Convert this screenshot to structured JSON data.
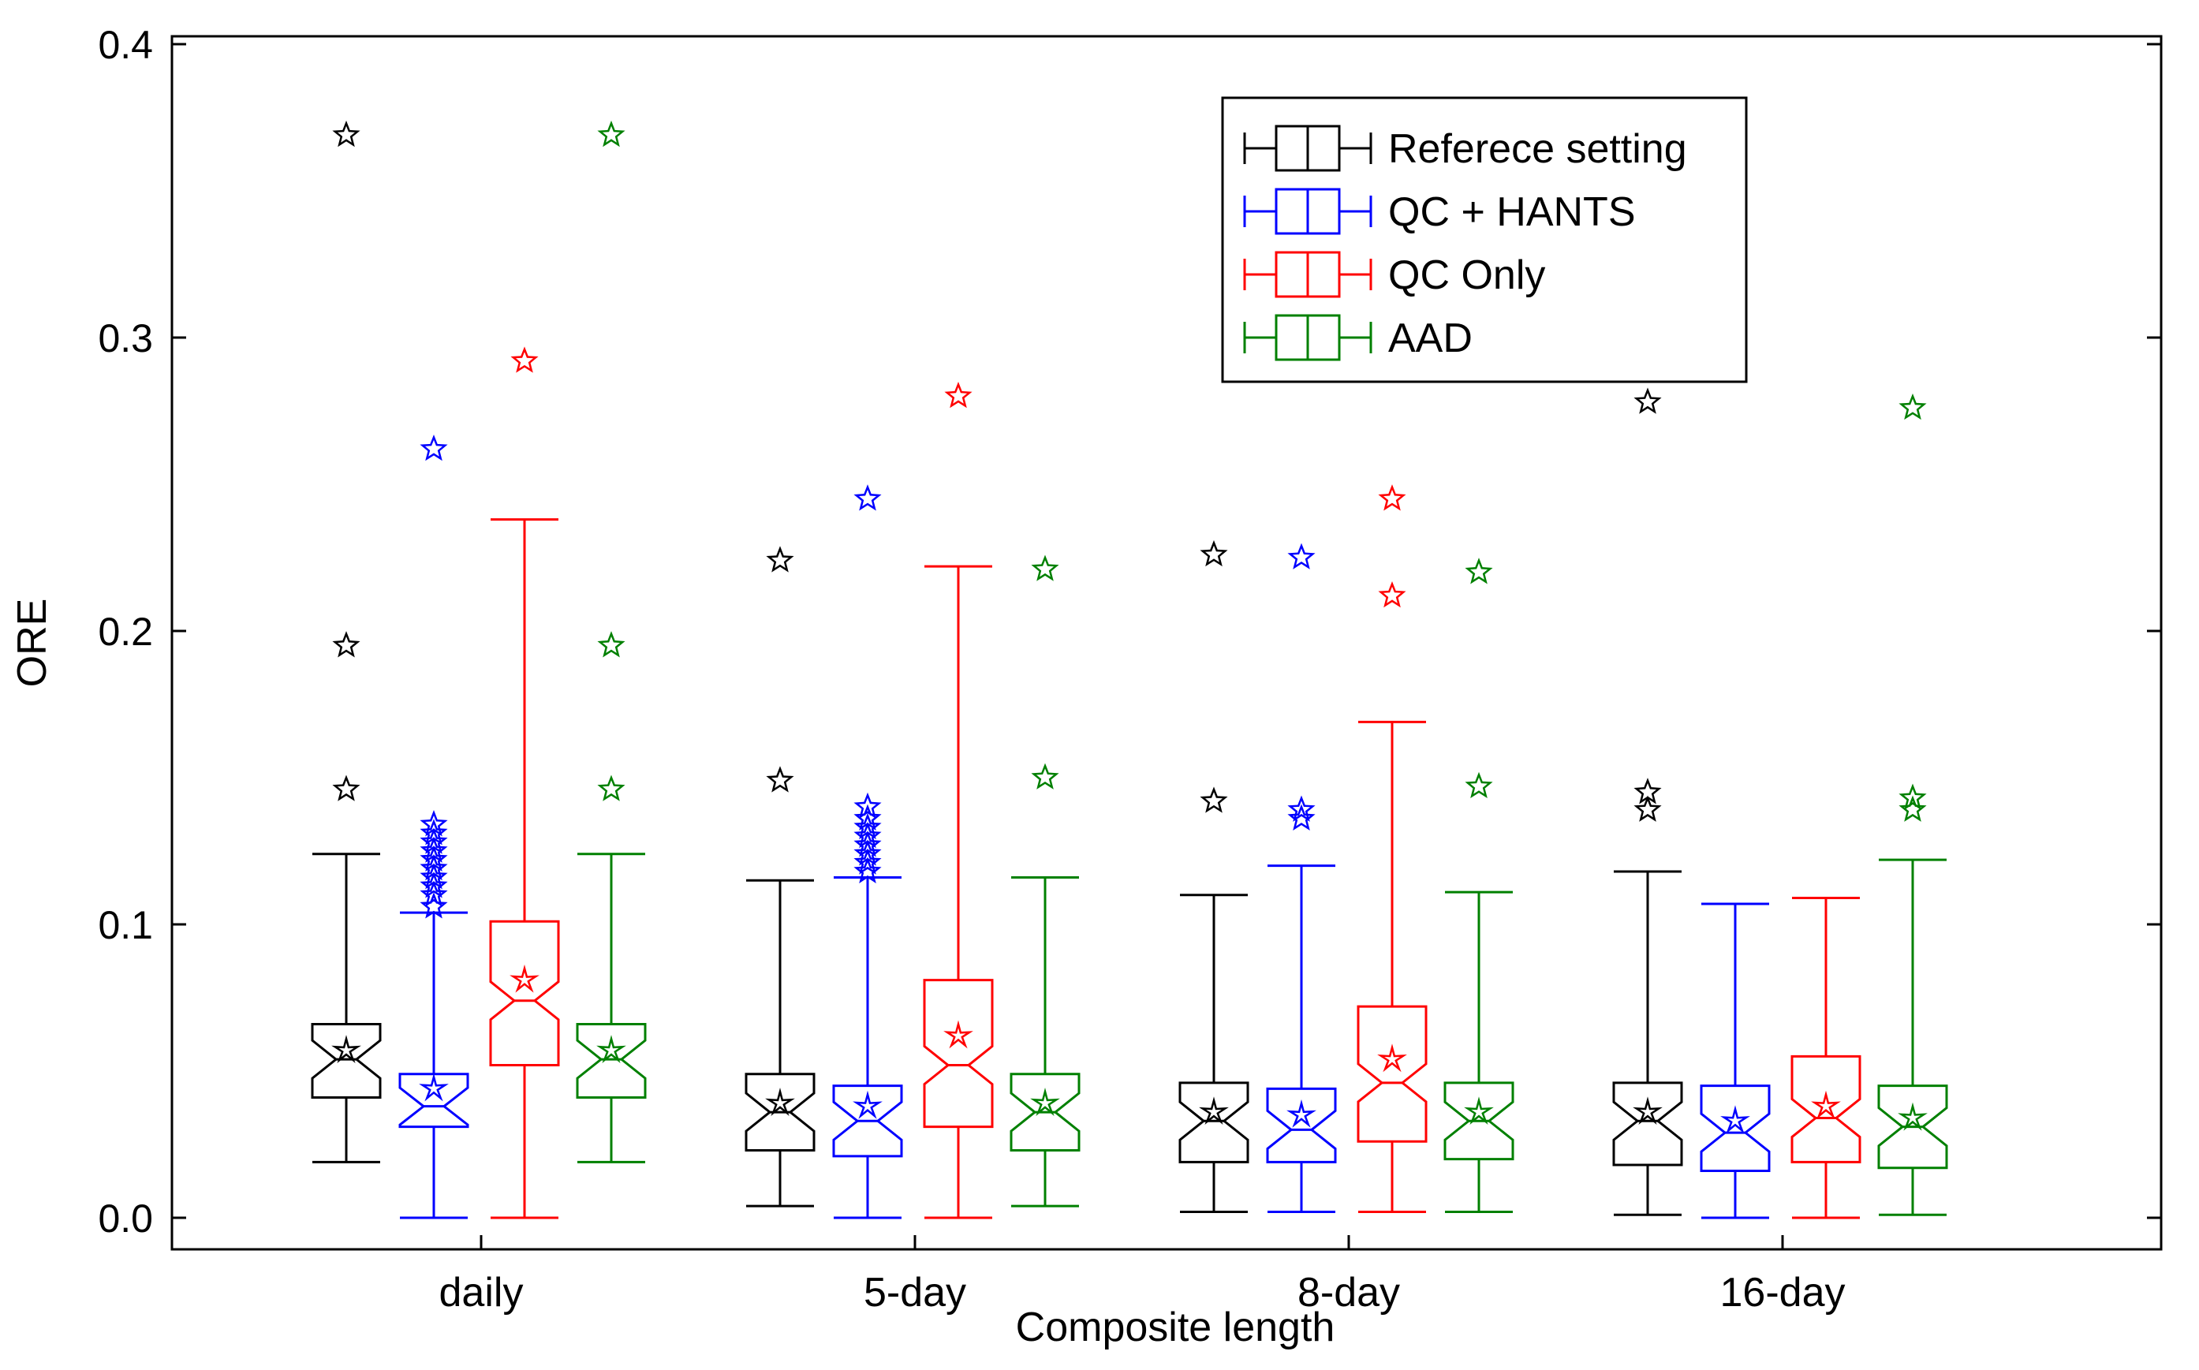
{
  "chart_data": {
    "type": "boxplot",
    "title": "",
    "xlabel": "Composite length",
    "ylabel": "ORE",
    "ylim": [
      0,
      0.4
    ],
    "yticks": [
      "0.0",
      "0.1",
      "0.2",
      "0.3",
      "0.4"
    ],
    "categories": [
      "daily",
      "5-day",
      "8-day",
      "16-day"
    ],
    "legend_position": "top-right",
    "series": [
      {
        "name": "Referece setting",
        "color": "#000000",
        "boxes": [
          {
            "whisker_low": 0.019,
            "q1": 0.041,
            "median": 0.054,
            "q3": 0.066,
            "whisker_high": 0.124,
            "mean": 0.057,
            "outliers": [
              0.146,
              0.195,
              0.369
            ]
          },
          {
            "whisker_low": 0.004,
            "q1": 0.023,
            "median": 0.036,
            "q3": 0.049,
            "whisker_high": 0.115,
            "mean": 0.039,
            "outliers": [
              0.149,
              0.224
            ]
          },
          {
            "whisker_low": 0.002,
            "q1": 0.019,
            "median": 0.033,
            "q3": 0.046,
            "whisker_high": 0.11,
            "mean": 0.036,
            "outliers": [
              0.142,
              0.226
            ]
          },
          {
            "whisker_low": 0.001,
            "q1": 0.018,
            "median": 0.033,
            "q3": 0.046,
            "whisker_high": 0.118,
            "mean": 0.036,
            "outliers": [
              0.139,
              0.145,
              0.278
            ]
          }
        ]
      },
      {
        "name": "QC + HANTS",
        "color": "#0000ff",
        "boxes": [
          {
            "whisker_low": 0.0,
            "q1": 0.031,
            "median": 0.038,
            "q3": 0.049,
            "whisker_high": 0.104,
            "mean": 0.044,
            "outliers": [
              0.106,
              0.11,
              0.113,
              0.116,
              0.119,
              0.122,
              0.125,
              0.128,
              0.131,
              0.134,
              0.262
            ]
          },
          {
            "whisker_low": 0.0,
            "q1": 0.021,
            "median": 0.033,
            "q3": 0.045,
            "whisker_high": 0.116,
            "mean": 0.038,
            "outliers": [
              0.118,
              0.121,
              0.124,
              0.127,
              0.13,
              0.133,
              0.136,
              0.14,
              0.245
            ]
          },
          {
            "whisker_low": 0.002,
            "q1": 0.019,
            "median": 0.03,
            "q3": 0.044,
            "whisker_high": 0.12,
            "mean": 0.035,
            "outliers": [
              0.136,
              0.139,
              0.225
            ]
          },
          {
            "whisker_low": 0.0,
            "q1": 0.016,
            "median": 0.029,
            "q3": 0.045,
            "whisker_high": 0.107,
            "mean": 0.033,
            "outliers": []
          }
        ]
      },
      {
        "name": "QC Only",
        "color": "#ff0000",
        "boxes": [
          {
            "whisker_low": 0.0,
            "q1": 0.052,
            "median": 0.074,
            "q3": 0.101,
            "whisker_high": 0.238,
            "mean": 0.081,
            "outliers": [
              0.292
            ]
          },
          {
            "whisker_low": 0.0,
            "q1": 0.031,
            "median": 0.052,
            "q3": 0.081,
            "whisker_high": 0.222,
            "mean": 0.062,
            "outliers": [
              0.28
            ]
          },
          {
            "whisker_low": 0.002,
            "q1": 0.026,
            "median": 0.046,
            "q3": 0.072,
            "whisker_high": 0.169,
            "mean": 0.054,
            "outliers": [
              0.212,
              0.245
            ]
          },
          {
            "whisker_low": 0.0,
            "q1": 0.019,
            "median": 0.034,
            "q3": 0.055,
            "whisker_high": 0.109,
            "mean": 0.038,
            "outliers": []
          }
        ]
      },
      {
        "name": "AAD",
        "color": "#008000",
        "boxes": [
          {
            "whisker_low": 0.019,
            "q1": 0.041,
            "median": 0.054,
            "q3": 0.066,
            "whisker_high": 0.124,
            "mean": 0.057,
            "outliers": [
              0.146,
              0.195,
              0.369
            ]
          },
          {
            "whisker_low": 0.004,
            "q1": 0.023,
            "median": 0.036,
            "q3": 0.049,
            "whisker_high": 0.116,
            "mean": 0.039,
            "outliers": [
              0.15,
              0.221
            ]
          },
          {
            "whisker_low": 0.002,
            "q1": 0.02,
            "median": 0.033,
            "q3": 0.046,
            "whisker_high": 0.111,
            "mean": 0.036,
            "outliers": [
              0.147,
              0.22
            ]
          },
          {
            "whisker_low": 0.001,
            "q1": 0.017,
            "median": 0.031,
            "q3": 0.045,
            "whisker_high": 0.122,
            "mean": 0.034,
            "outliers": [
              0.139,
              0.143,
              0.276
            ]
          }
        ]
      }
    ]
  }
}
